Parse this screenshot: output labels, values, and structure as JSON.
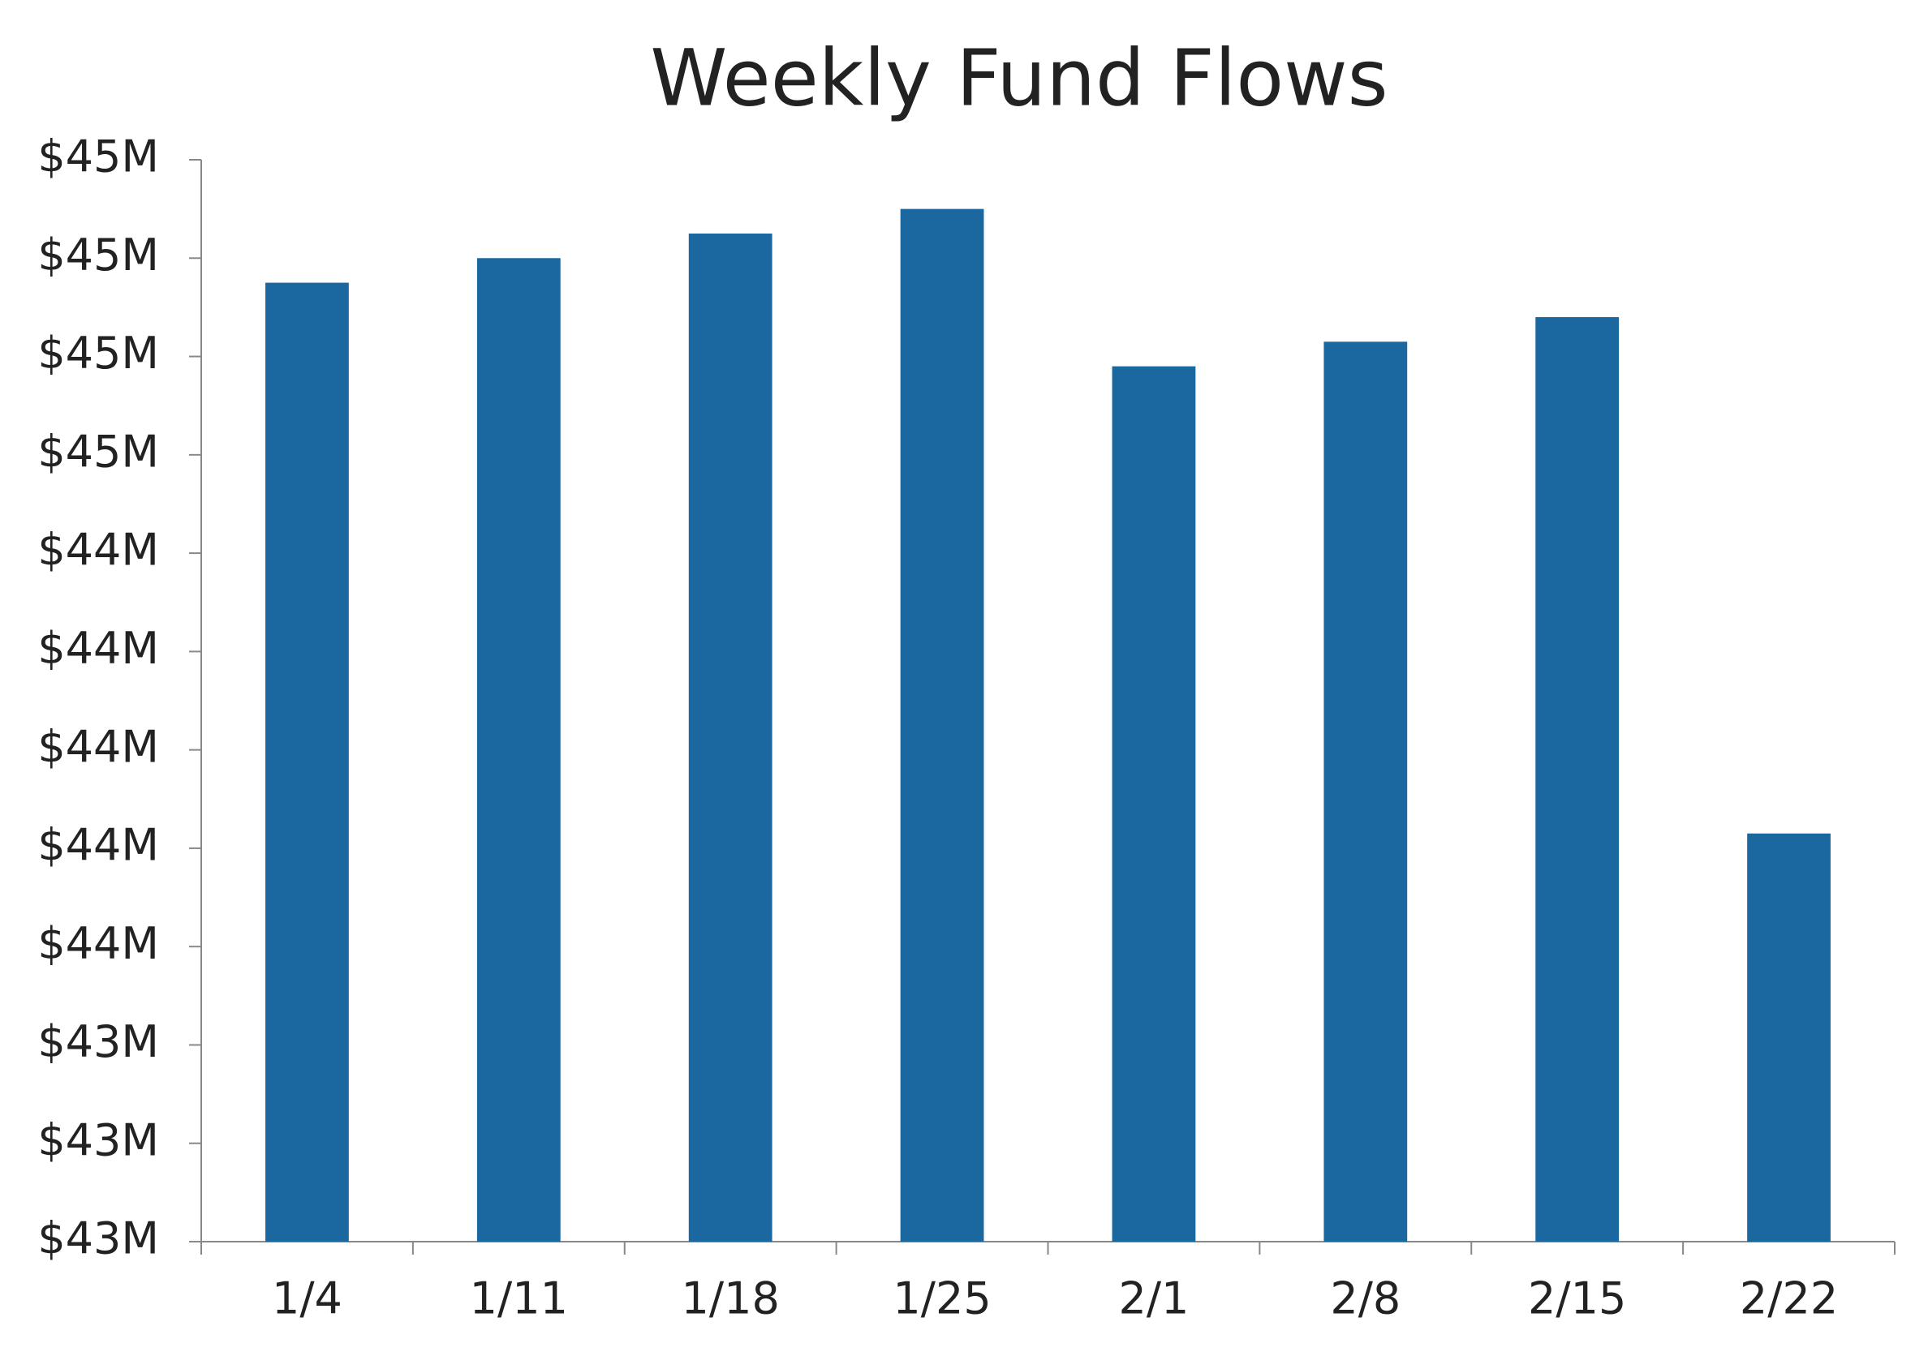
{
  "chart_data": {
    "type": "bar",
    "title": "Weekly Fund Flows",
    "categories": [
      "1/4",
      "1/11",
      "1/18",
      "1/25",
      "2/1",
      "2/8",
      "2/15",
      "2/22"
    ],
    "values": [
      44.95,
      45.0,
      45.05,
      45.1,
      44.78,
      44.83,
      44.88,
      43.83
    ],
    "color": "#1b68a0",
    "ylim": [
      43.0,
      45.2
    ],
    "yticks": [
      {
        "value": 43.0,
        "label": "$43M"
      },
      {
        "value": 43.2,
        "label": "$43M"
      },
      {
        "value": 43.4,
        "label": "$43M"
      },
      {
        "value": 43.6,
        "label": "$44M"
      },
      {
        "value": 43.8,
        "label": "$44M"
      },
      {
        "value": 44.0,
        "label": "$44M"
      },
      {
        "value": 44.2,
        "label": "$44M"
      },
      {
        "value": 44.4,
        "label": "$44M"
      },
      {
        "value": 44.6,
        "label": "$45M"
      },
      {
        "value": 44.8,
        "label": "$45M"
      },
      {
        "value": 45.0,
        "label": "$45M"
      },
      {
        "value": 45.2,
        "label": "$45M"
      }
    ],
    "grid": false
  }
}
